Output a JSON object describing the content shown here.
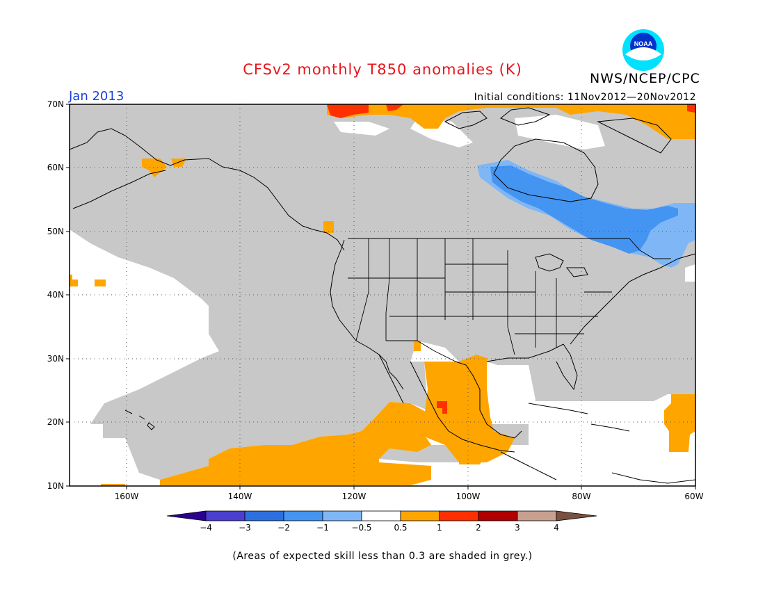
{
  "header": {
    "title": "CFSv2 monthly T850 anomalies (K)",
    "title_color": "#e8151b",
    "agency": "NWS/NCEP/CPC",
    "month": "Jan 2013",
    "month_color": "#1a3fe0",
    "initial_conditions": "Initial conditions: 11Nov2012—20Nov2012"
  },
  "logo": {
    "text": "NOAA",
    "icon": "noaa-logo-icon",
    "colors": {
      "outer": "#00e1ff",
      "inner": "#0033cc",
      "bird": "#ffffff"
    }
  },
  "map": {
    "grid": "dotted",
    "lat_labels": [
      "70N",
      "60N",
      "50N",
      "40N",
      "30N",
      "20N",
      "10N"
    ],
    "lon_labels": [
      "160W",
      "140W",
      "120W",
      "100W",
      "80W",
      "60W"
    ],
    "region": "North America and Eastern Pacific"
  },
  "colorbar": {
    "labels": [
      "−4",
      "−3",
      "−2",
      "−1",
      "−0.5",
      "0.5",
      "1",
      "2",
      "3",
      "4"
    ],
    "colors": [
      "#2a0090",
      "#4a3fd0",
      "#2c6fe0",
      "#4494f2",
      "#7fb7f6",
      "#ffffff",
      "#ffa500",
      "#ff3000",
      "#b00000",
      "#c8a090",
      "#7a5040"
    ]
  },
  "legend_colors": {
    "grey_low_skill": "#c8c8c8",
    "warm_0_5_1": "#ffa500",
    "warm_1_2": "#ff3000",
    "cool_neg1_neg0_5": "#7fb7f6",
    "cool_neg2_neg1": "#4494f2"
  },
  "footnote": "(Areas of expected skill less than 0.3 are shaded in grey.)"
}
